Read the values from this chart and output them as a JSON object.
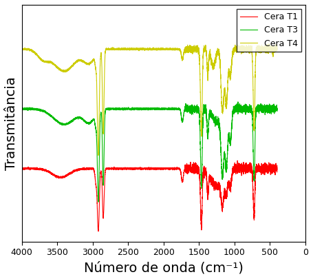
{
  "title": "",
  "xlabel": "Número de onda (cm⁻¹)",
  "ylabel": "Transmitância",
  "xlim": [
    4000,
    0
  ],
  "ylim": [
    0,
    1
  ],
  "legend": [
    "Cera T1",
    "Cera T3",
    "Cera T4"
  ],
  "colors": [
    "red",
    "#00bb00",
    "#cccc00"
  ],
  "background": "white",
  "xticks": [
    4000,
    3500,
    3000,
    2500,
    2000,
    1500,
    1000,
    500,
    0
  ],
  "xlabel_fontsize": 14,
  "ylabel_fontsize": 14,
  "legend_fontsize": 9,
  "linewidth": 0.8
}
